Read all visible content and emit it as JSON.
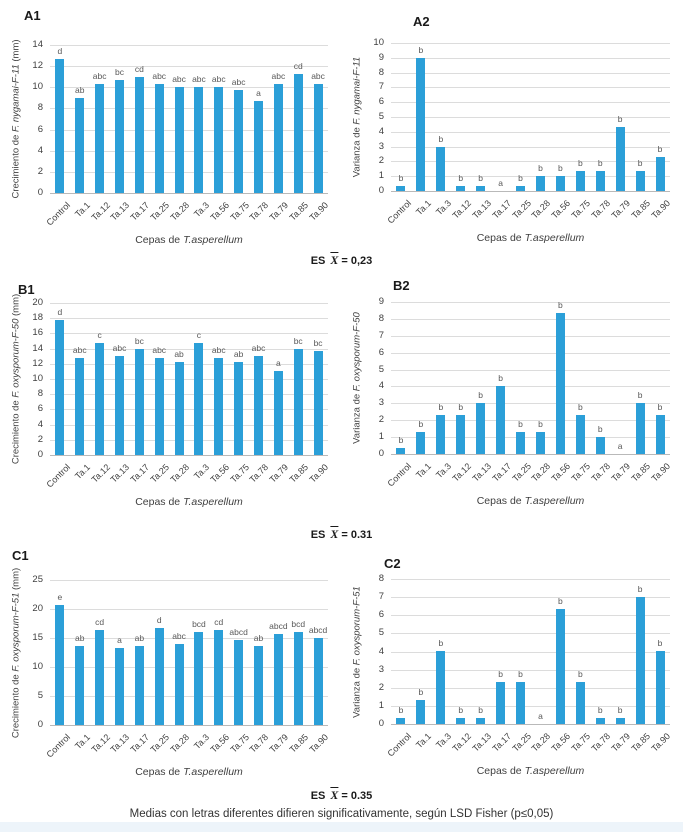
{
  "page": {
    "caption": "Medias con letras diferentes difieren significativamente, según LSD Fisher (p≤0,05)",
    "bar_color": "#2b9fd8"
  },
  "es_labels": [
    {
      "prefix": "ES",
      "symbol": "X",
      "value": "= 0,23"
    },
    {
      "prefix": "ES",
      "symbol": "X",
      "value": "= 0.31"
    },
    {
      "prefix": "ES",
      "symbol": "X",
      "value": "= 0.35"
    }
  ],
  "chart_data": [
    {
      "id": "A1",
      "type": "bar",
      "panel_label": "A1",
      "ylabel": {
        "prefix": "Crecimiento de ",
        "italic": "F. nygamai-F-11",
        "suffix": " (mm)"
      },
      "xlabel": {
        "prefix": "Cepas de ",
        "italic": "T.asperellum"
      },
      "ylim": [
        0,
        14
      ],
      "ystep": 2,
      "categories": [
        "Control",
        "Ta.1",
        "Ta.12",
        "Ta.13",
        "Ta.17",
        "Ta.25",
        "Ta.28",
        "Ta.3",
        "Ta.56",
        "Ta.75",
        "Ta.78",
        "Ta.79",
        "Ta.85",
        "Ta.90"
      ],
      "values": [
        12.7,
        9.0,
        10.3,
        10.7,
        11.0,
        10.3,
        10.0,
        10.0,
        10.0,
        9.7,
        8.7,
        10.3,
        11.3,
        10.3
      ],
      "letters": [
        "d",
        "ab",
        "abc",
        "bc",
        "cd",
        "abc",
        "abc",
        "abc",
        "abc",
        "abc",
        "a",
        "abc",
        "cd",
        "abc"
      ]
    },
    {
      "id": "A2",
      "type": "bar",
      "panel_label": "A2",
      "ylabel": {
        "prefix": "Varianza de ",
        "italic": "F. nygamai-F-11",
        "suffix": ""
      },
      "xlabel": {
        "prefix": "Cepas de ",
        "italic": "T.asperellum"
      },
      "ylim": [
        0,
        10
      ],
      "ystep": 1,
      "categories": [
        "Control",
        "Ta.1",
        "Ta.3",
        "Ta.12",
        "Ta.13",
        "Ta.17",
        "Ta.25",
        "Ta.28",
        "Ta.56",
        "Ta.75",
        "Ta.78",
        "Ta.79",
        "Ta.85",
        "Ta.90"
      ],
      "values": [
        0.33,
        9.0,
        3.0,
        0.33,
        0.33,
        0,
        0.33,
        1.0,
        1.0,
        1.33,
        1.33,
        4.33,
        1.33,
        2.33
      ],
      "letters": [
        "b",
        "b",
        "b",
        "b",
        "b",
        "a",
        "b",
        "b",
        "b",
        "b",
        "b",
        "b",
        "b",
        "b"
      ]
    },
    {
      "id": "B1",
      "type": "bar",
      "panel_label": "B1",
      "ylabel": {
        "prefix": "Crecimiento de ",
        "italic": "F. oxysporum-F-50",
        "suffix": " (mm)"
      },
      "xlabel": {
        "prefix": "Cepas de ",
        "italic": "T.asperellum"
      },
      "ylim": [
        0,
        20
      ],
      "ystep": 2,
      "categories": [
        "Control",
        "Ta.1",
        "Ta.12",
        "Ta.13",
        "Ta.17",
        "Ta.25",
        "Ta.28",
        "Ta.3",
        "Ta.56",
        "Ta.75",
        "Ta.78",
        "Ta.79",
        "Ta.85",
        "Ta.90"
      ],
      "values": [
        17.7,
        12.7,
        14.7,
        13.0,
        14.0,
        12.7,
        12.3,
        14.7,
        12.7,
        12.3,
        13.0,
        11.0,
        14.0,
        13.7
      ],
      "letters": [
        "d",
        "abc",
        "c",
        "abc",
        "bc",
        "abc",
        "ab",
        "c",
        "abc",
        "ab",
        "abc",
        "a",
        "bc",
        "bc"
      ]
    },
    {
      "id": "B2",
      "type": "bar",
      "panel_label": "B2",
      "ylabel": {
        "prefix": "Varianza de ",
        "italic": "F. oxysporum-F-50",
        "suffix": ""
      },
      "xlabel": {
        "prefix": "Cepas de ",
        "italic": "T.asperellum"
      },
      "ylim": [
        0,
        9
      ],
      "ystep": 1,
      "categories": [
        "Control",
        "Ta.1",
        "Ta.3",
        "Ta.12",
        "Ta.13",
        "Ta.17",
        "Ta.25",
        "Ta.28",
        "Ta.56",
        "Ta.75",
        "Ta.78",
        "Ta.79",
        "Ta.85",
        "Ta.90"
      ],
      "values": [
        0.33,
        1.33,
        2.33,
        2.33,
        3.0,
        4.0,
        1.33,
        1.33,
        8.33,
        2.33,
        1.0,
        0,
        3.0,
        2.33
      ],
      "letters": [
        "b",
        "b",
        "b",
        "b",
        "b",
        "b",
        "b",
        "b",
        "b",
        "b",
        "b",
        "a",
        "b",
        "b"
      ]
    },
    {
      "id": "C1",
      "type": "bar",
      "panel_label": "C1",
      "ylabel": {
        "prefix": "Crecimiento de ",
        "italic": "F. oxysporum-F-51",
        "suffix": " (mm)"
      },
      "xlabel": {
        "prefix": "Cepas de ",
        "italic": "T.asperellum"
      },
      "ylim": [
        0,
        25
      ],
      "ystep": 5,
      "categories": [
        "Control",
        "Ta.1",
        "Ta.12",
        "Ta.13",
        "Ta.17",
        "Ta.25",
        "Ta.28",
        "Ta.3",
        "Ta.56",
        "Ta.75",
        "Ta.78",
        "Ta.79",
        "Ta.85",
        "Ta.90"
      ],
      "values": [
        20.7,
        13.7,
        16.3,
        13.3,
        13.7,
        16.7,
        14.0,
        16.0,
        16.3,
        14.7,
        13.7,
        15.7,
        16.0,
        15.0
      ],
      "letters": [
        "e",
        "ab",
        "cd",
        "a",
        "ab",
        "d",
        "abc",
        "bcd",
        "cd",
        "abcd",
        "ab",
        "abcd",
        "bcd",
        "abcd"
      ]
    },
    {
      "id": "C2",
      "type": "bar",
      "panel_label": "C2",
      "ylabel": {
        "prefix": "Varianza de ",
        "italic": "F. oxysporum-F-51",
        "suffix": ""
      },
      "xlabel": {
        "prefix": "Cepas de ",
        "italic": "T.asperellum"
      },
      "ylim": [
        0,
        8
      ],
      "ystep": 1,
      "categories": [
        "Control",
        "Ta.1",
        "Ta.3",
        "Ta.12",
        "Ta.13",
        "Ta.17",
        "Ta.25",
        "Ta.28",
        "Ta.56",
        "Ta.75",
        "Ta.78",
        "Ta.79",
        "Ta.85",
        "Ta.90"
      ],
      "values": [
        0.33,
        1.33,
        4.0,
        0.33,
        0.33,
        2.33,
        2.33,
        0,
        6.33,
        2.33,
        0.33,
        0.33,
        7.0,
        4.0
      ],
      "letters": [
        "b",
        "b",
        "b",
        "b",
        "b",
        "b",
        "b",
        "a",
        "b",
        "b",
        "b",
        "b",
        "b",
        "b"
      ]
    }
  ]
}
